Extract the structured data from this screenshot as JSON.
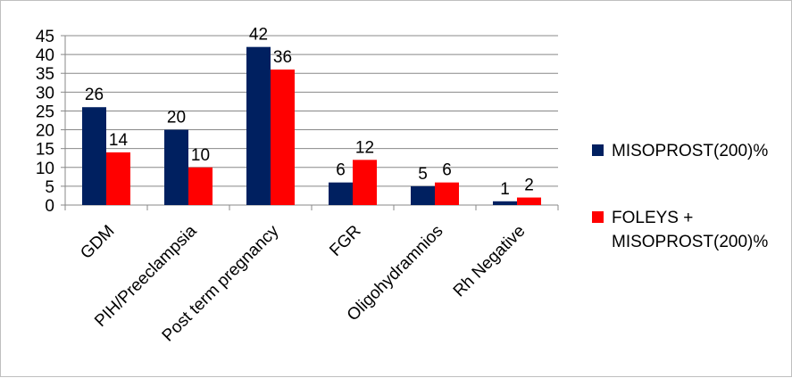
{
  "chart_data": {
    "type": "bar",
    "title": "",
    "xlabel": "",
    "ylabel": "",
    "categories": [
      "GDM",
      "PIH/Preeclampsia",
      "Post term pregnancy",
      "FGR",
      "Oligohydramnios",
      "Rh Negative"
    ],
    "series": [
      {
        "name": "MISOPROST(200)%",
        "color": "#002060",
        "values": [
          26,
          20,
          42,
          6,
          5,
          1
        ]
      },
      {
        "name": "FOLEYS + MISOPROST(200)%",
        "color": "#ff0000",
        "values": [
          14,
          10,
          36,
          12,
          6,
          2
        ]
      }
    ],
    "ylim": [
      0,
      45
    ],
    "yticks": [
      0,
      5,
      10,
      15,
      20,
      25,
      30,
      35,
      40,
      45
    ],
    "grid": true,
    "legend_position": "right",
    "legend_lines": [
      [
        "MISOPROST(200)%"
      ],
      [
        "FOLEYS +",
        "MISOPROST(200)%"
      ]
    ]
  }
}
